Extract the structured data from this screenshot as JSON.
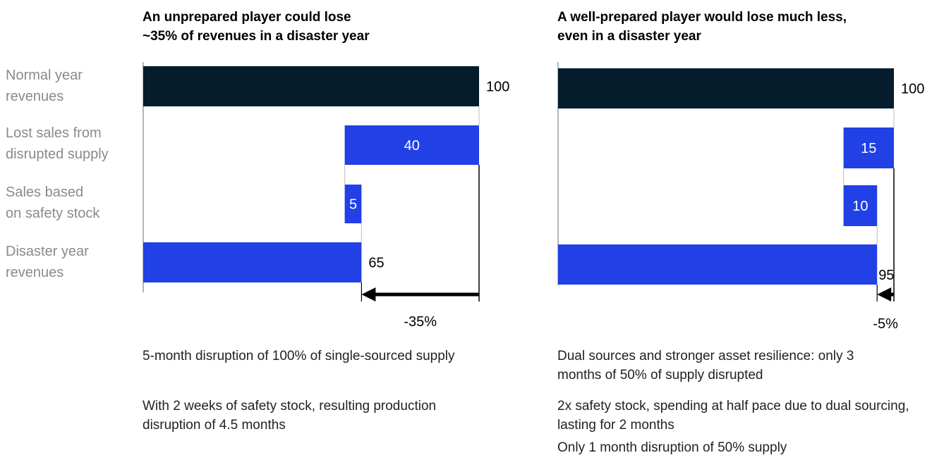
{
  "colors": {
    "dark": "#051c2c",
    "blue": "#2140e6",
    "axis": "#9e9e9e",
    "text": "#000000",
    "muted": "#8a8a8a"
  },
  "row_labels": [
    "Normal year\nrevenues",
    "Lost sales from\ndisrupted supply",
    "Sales based\non safety stock",
    "Disaster year\nrevenues"
  ],
  "chart_data": [
    {
      "type": "bar",
      "subtype": "waterfall",
      "title": "An unprepared player could lose\n~35% of revenues in a disaster year",
      "categories": [
        "Normal year revenues",
        "Lost sales from disrupted supply",
        "Sales based on safety stock",
        "Disaster year revenues"
      ],
      "bars": [
        {
          "start": 0,
          "end": 100,
          "label": "100",
          "kind": "total"
        },
        {
          "start": 60,
          "end": 100,
          "label": "40",
          "kind": "decrease"
        },
        {
          "start": 60,
          "end": 65,
          "label": "5",
          "kind": "increase"
        },
        {
          "start": 0,
          "end": 65,
          "label": "65",
          "kind": "total"
        }
      ],
      "change_label": "-35%",
      "notes": [
        "5-month disruption of 100% of single-sourced supply",
        "With 2 weeks of safety stock, resulting production disruption of 4.5 months"
      ]
    },
    {
      "type": "bar",
      "subtype": "waterfall",
      "title": "A well-prepared player would lose much less,\neven in a disaster year",
      "categories": [
        "Normal year revenues",
        "Lost sales from disrupted supply",
        "Sales based on safety stock",
        "Disaster year revenues"
      ],
      "bars": [
        {
          "start": 0,
          "end": 100,
          "label": "100",
          "kind": "total"
        },
        {
          "start": 85,
          "end": 100,
          "label": "15",
          "kind": "decrease"
        },
        {
          "start": 85,
          "end": 95,
          "label": "10",
          "kind": "increase"
        },
        {
          "start": 0,
          "end": 95,
          "label": "95",
          "kind": "total"
        }
      ],
      "change_label": "-5%",
      "notes": [
        "Dual sources and stronger asset resilience: only 3 months of 50% of supply disrupted",
        "2x safety stock, spending at half pace due to dual sourcing, lasting for 2 months",
        "Only 1 month disruption of 50% supply"
      ]
    }
  ]
}
